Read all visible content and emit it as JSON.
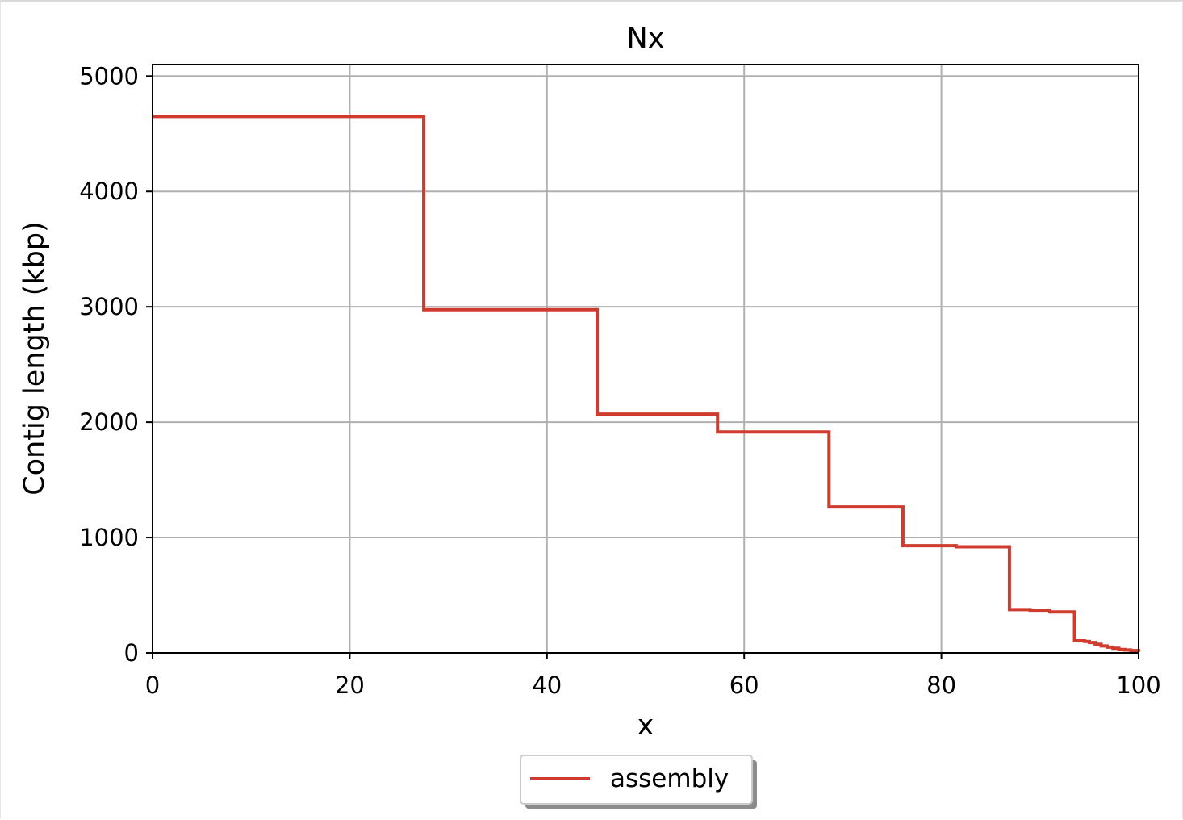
{
  "chart_data": {
    "type": "line",
    "title": "Nx",
    "xlabel": "x",
    "ylabel": "Contig length (kbp)",
    "xlim": [
      0,
      100
    ],
    "ylim": [
      0,
      5100
    ],
    "xticks": [
      0,
      20,
      40,
      60,
      80,
      100
    ],
    "yticks": [
      0,
      1000,
      2000,
      3000,
      4000,
      5000
    ],
    "xtick_labels": [
      "0",
      "20",
      "40",
      "60",
      "80",
      "100"
    ],
    "ytick_labels": [
      "0",
      "1000",
      "2000",
      "3000",
      "4000",
      "5000"
    ],
    "grid": true,
    "legend_position": "bottom-center",
    "series": [
      {
        "name": "assembly",
        "color": "#d03b2f",
        "step": true,
        "x": [
          0,
          27.5,
          45.1,
          57.3,
          68.6,
          76.1,
          81.5,
          86.9,
          89.0,
          91.0,
          93.5,
          94.5,
          95.0,
          95.6,
          96.2,
          96.8,
          97.4,
          98.0,
          98.6,
          99.2,
          100
        ],
        "y": [
          4650,
          2975,
          2070,
          1915,
          1265,
          930,
          920,
          375,
          370,
          355,
          105,
          100,
          90,
          75,
          60,
          50,
          40,
          30,
          25,
          20,
          10
        ]
      }
    ]
  }
}
